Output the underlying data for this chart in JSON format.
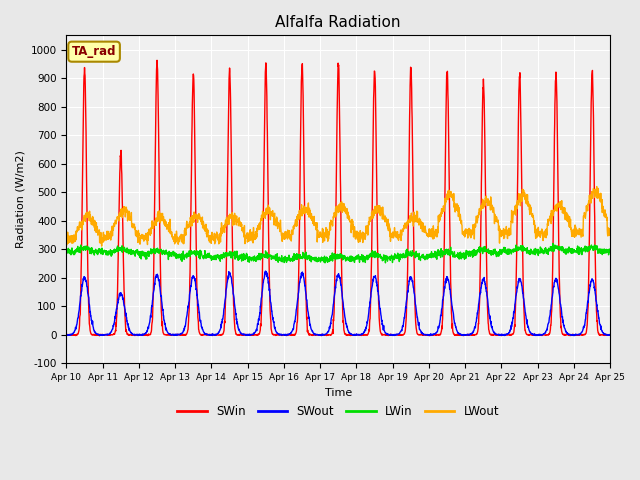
{
  "title": "Alfalfa Radiation",
  "xlabel": "Time",
  "ylabel": "Radiation (W/m2)",
  "ylim": [
    -100,
    1050
  ],
  "xlim": [
    0,
    360
  ],
  "fig_bg_color": "#e8e8e8",
  "plot_bg_color": "#f0f0f0",
  "grid_color": "#ffffff",
  "series": {
    "SWin": {
      "color": "#ff0000",
      "lw": 1.0
    },
    "SWout": {
      "color": "#0000ff",
      "lw": 1.0
    },
    "LWin": {
      "color": "#00dd00",
      "lw": 1.0
    },
    "LWout": {
      "color": "#ffaa00",
      "lw": 1.0
    }
  },
  "annotation_text": "TA_rad",
  "annotation_color": "#880000",
  "annotation_bg": "#ffffaa",
  "annotation_border": "#aa8800",
  "xtick_labels": [
    "Apr 10",
    "Apr 11",
    "Apr 12",
    "Apr 13",
    "Apr 14",
    "Apr 15",
    "Apr 16",
    "Apr 17",
    "Apr 18",
    "Apr 19",
    "Apr 20",
    "Apr 21",
    "Apr 22",
    "Apr 23",
    "Apr 24",
    "Apr 25"
  ],
  "xtick_positions": [
    0,
    24,
    48,
    72,
    96,
    120,
    144,
    168,
    192,
    216,
    240,
    264,
    288,
    312,
    336,
    360
  ],
  "ytick_labels": [
    "-100",
    "0",
    "100",
    "200",
    "300",
    "400",
    "500",
    "600",
    "700",
    "800",
    "900",
    "1000"
  ],
  "ytick_positions": [
    -100,
    0,
    100,
    200,
    300,
    400,
    500,
    600,
    700,
    800,
    900,
    1000
  ]
}
